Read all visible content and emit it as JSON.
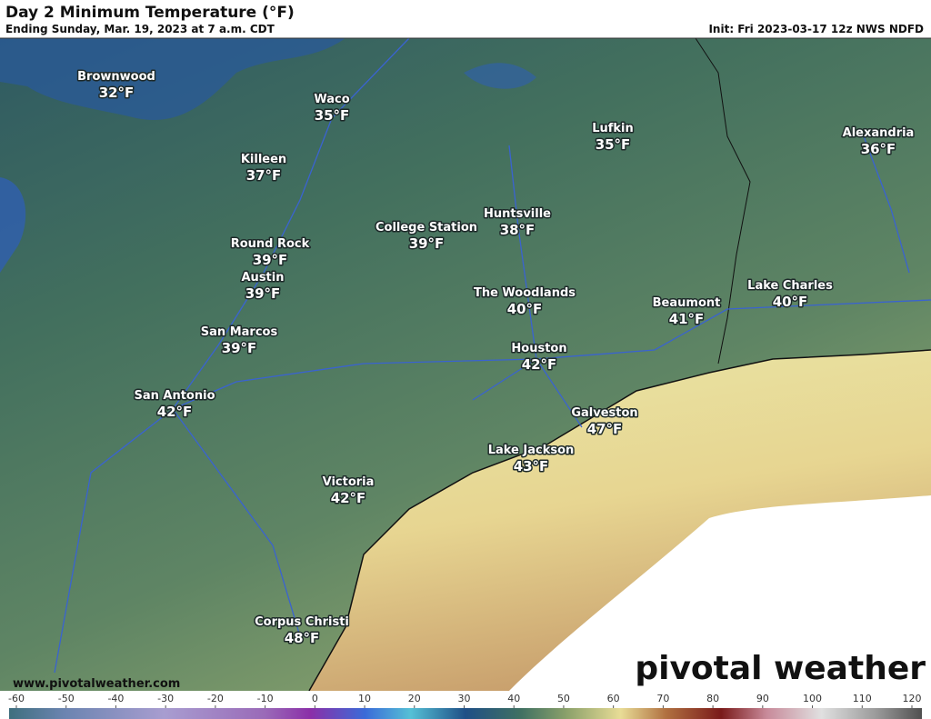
{
  "header": {
    "title": "Day 2 Minimum Temperature (°F)",
    "subtitle": "Ending Sunday, Mar. 19, 2023 at 7 a.m. CDT",
    "init": "Init: Fri 2023-03-17 12z NWS NDFD"
  },
  "cities": [
    {
      "name": "Brownwood",
      "temp": "32°F"
    },
    {
      "name": "Waco",
      "temp": "35°F"
    },
    {
      "name": "Killeen",
      "temp": "37°F"
    },
    {
      "name": "Lufkin",
      "temp": "35°F"
    },
    {
      "name": "Alexandria",
      "temp": "36°F"
    },
    {
      "name": "Huntsville",
      "temp": "38°F"
    },
    {
      "name": "College Station",
      "temp": "39°F"
    },
    {
      "name": "Round Rock",
      "temp": "39°F"
    },
    {
      "name": "Austin",
      "temp": "39°F"
    },
    {
      "name": "The Woodlands",
      "temp": "40°F"
    },
    {
      "name": "Beaumont",
      "temp": "41°F"
    },
    {
      "name": "Lake Charles",
      "temp": "40°F"
    },
    {
      "name": "San Marcos",
      "temp": "39°F"
    },
    {
      "name": "Houston",
      "temp": "42°F"
    },
    {
      "name": "San Antonio",
      "temp": "42°F"
    },
    {
      "name": "Galveston",
      "temp": "47°F"
    },
    {
      "name": "Lake Jackson",
      "temp": "43°F"
    },
    {
      "name": "Victoria",
      "temp": "42°F"
    },
    {
      "name": "Corpus Christi",
      "temp": "48°F"
    }
  ],
  "footer": {
    "website": "www.pivotalweather.com",
    "logo": "pivotal weather"
  },
  "colorbar": {
    "ticks": [
      -60,
      -50,
      -40,
      -30,
      -20,
      -10,
      0,
      10,
      20,
      30,
      40,
      50,
      60,
      70,
      80,
      90,
      100,
      110,
      120
    ]
  }
}
